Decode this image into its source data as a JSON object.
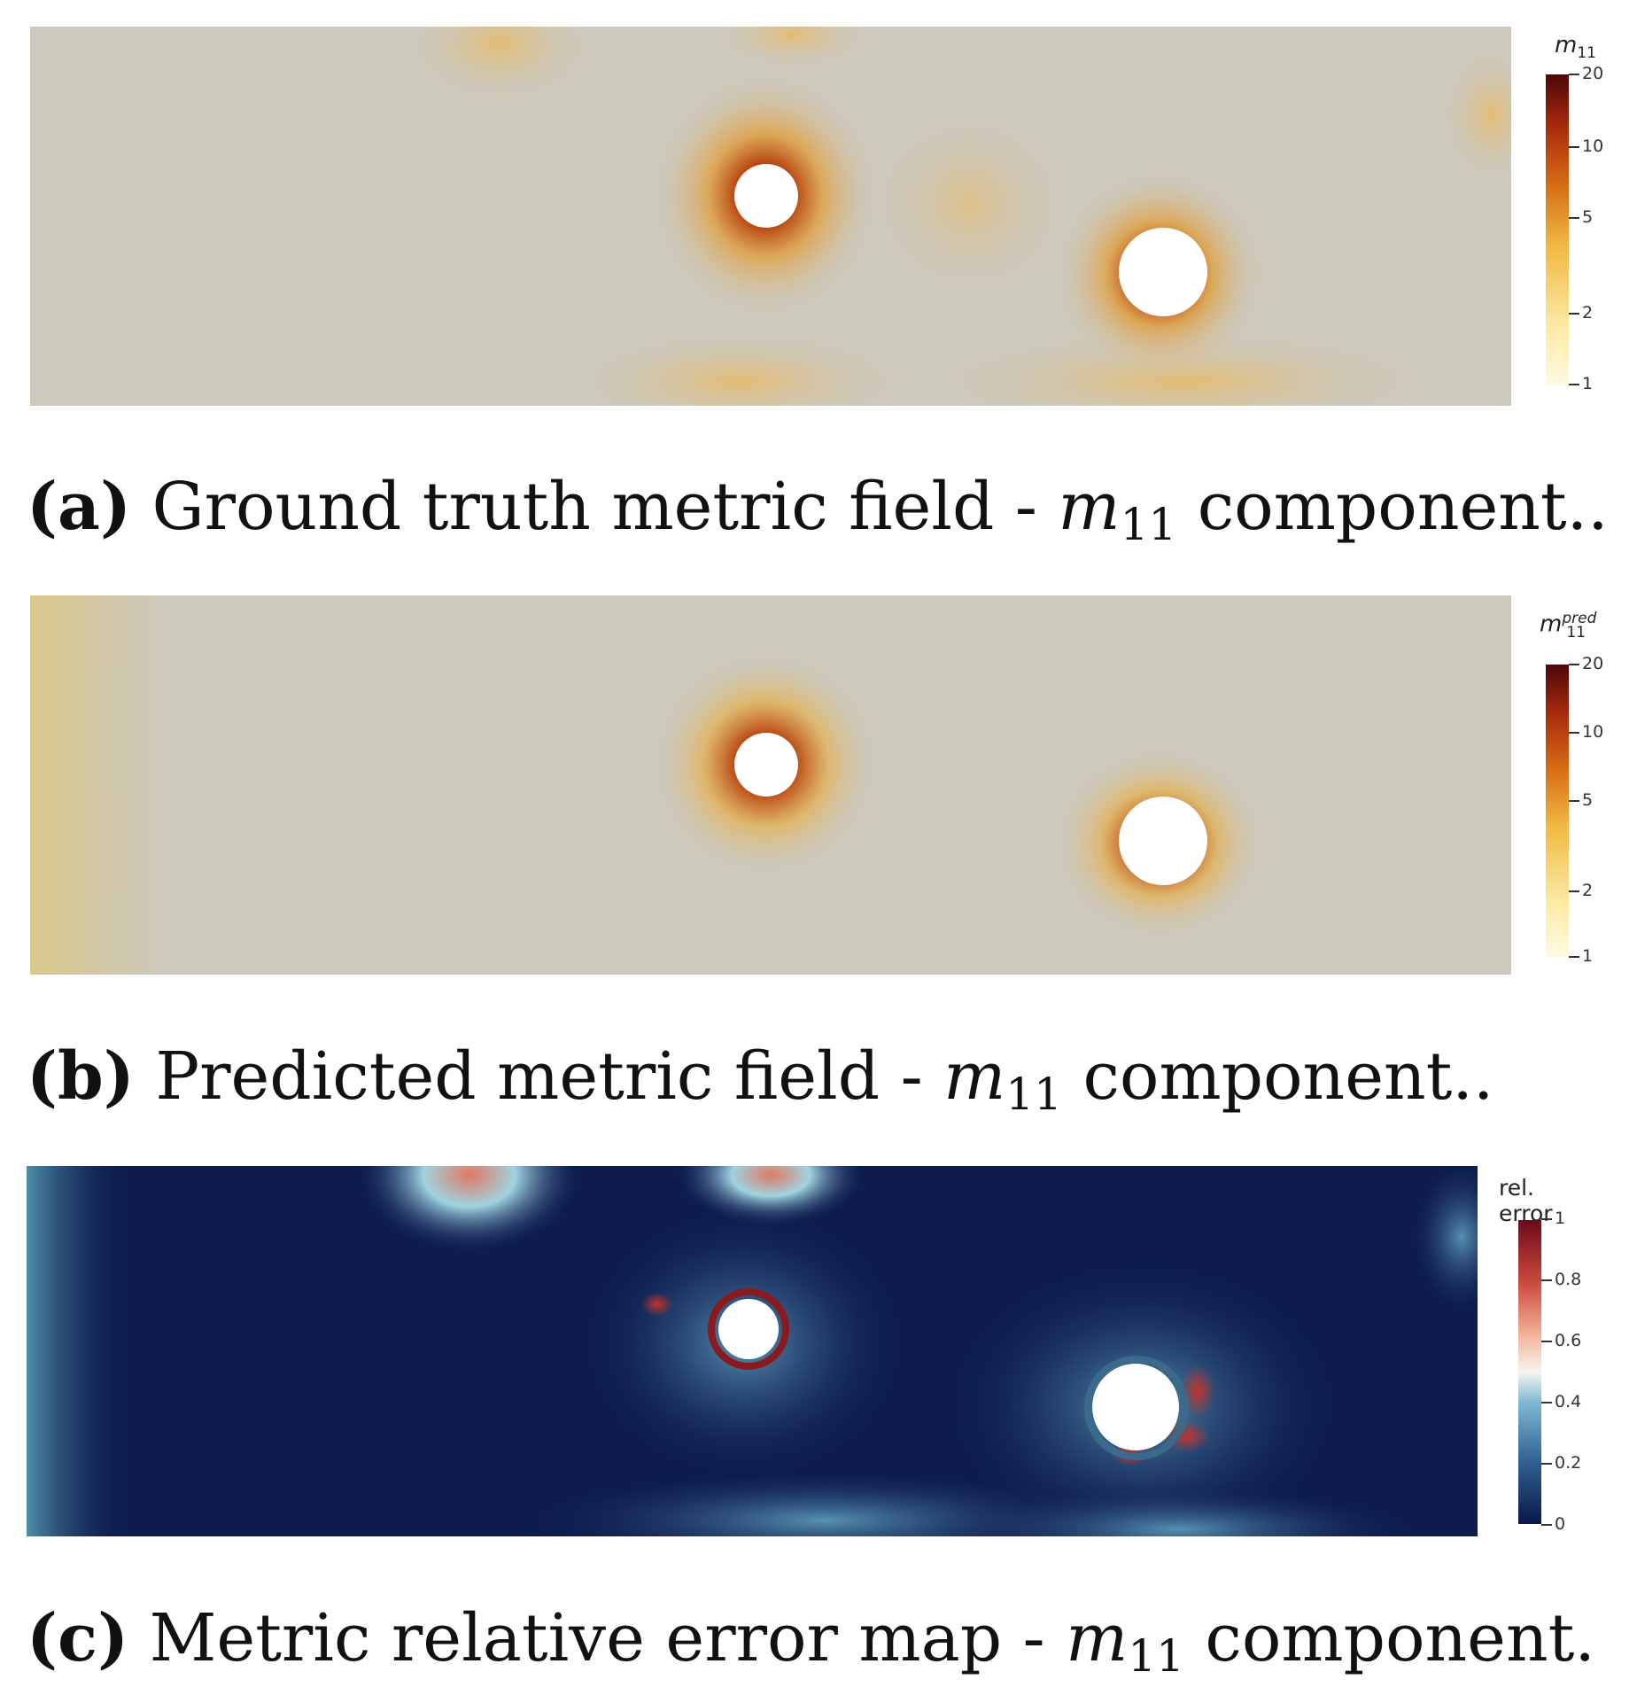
{
  "panels": [
    {
      "id": "a",
      "caption_label": "(a)",
      "caption_text": "Ground truth metric field - ",
      "caption_symbol": "m",
      "caption_sub": "11",
      "caption_tail": " component..",
      "colorbar_title": "m",
      "colorbar_title_sub": "11",
      "colorbar_title_sup": "",
      "colorbar_ticks": [
        "20",
        "10",
        "5",
        "2",
        "1"
      ],
      "colormap": "sequential-ylorbr"
    },
    {
      "id": "b",
      "caption_label": "(b)",
      "caption_text": "Predicted metric field - ",
      "caption_symbol": "m",
      "caption_sub": "11",
      "caption_tail": " component..",
      "colorbar_title": "m",
      "colorbar_title_sub": "11",
      "colorbar_title_sup": "pred",
      "colorbar_ticks": [
        "20",
        "10",
        "5",
        "2",
        "1"
      ],
      "colormap": "sequential-ylorbr"
    },
    {
      "id": "c",
      "caption_label": "(c)",
      "caption_text": "Metric relative error map - ",
      "caption_symbol": "m",
      "caption_sub": "11",
      "caption_tail": " component.",
      "colorbar_title": "rel. error",
      "colorbar_ticks": [
        "1",
        "0.8",
        "0.6",
        "0.4",
        "0.2",
        "0"
      ],
      "colormap": "diverging-rdbu"
    }
  ],
  "colors": {
    "background_field": "#cdc9bd",
    "error_background": "#0d1b4f",
    "hot": "#8b1a0e",
    "warm": "#e6a21c"
  }
}
